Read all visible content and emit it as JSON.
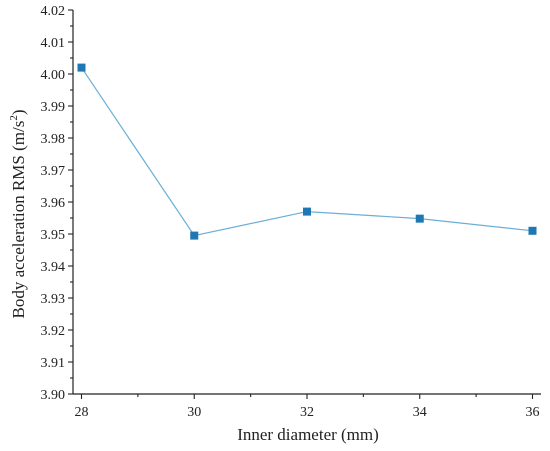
{
  "chart_data": {
    "type": "line",
    "title": "",
    "xlabel": "Inner diameter (mm)",
    "ylabel": "Body acceleration RMS (m/s",
    "ylabel_sup": "2",
    "ylabel_tail": ")",
    "x": [
      28,
      30,
      32,
      34,
      36
    ],
    "xticks": [
      "28",
      "30",
      "32",
      "34",
      "36"
    ],
    "xlim": [
      28,
      36
    ],
    "yticks": [
      "3.90",
      "3.91",
      "3.92",
      "3.93",
      "3.94",
      "3.95",
      "3.96",
      "3.97",
      "3.98",
      "3.99",
      "4.00",
      "4.01",
      "4.02"
    ],
    "ylim": [
      3.9,
      4.02
    ],
    "grid": false,
    "series": [
      {
        "values": [
          4.002,
          3.9495,
          3.957,
          3.9548,
          3.951
        ],
        "line_color": "#6baed6",
        "marker_color": "#1f77b4",
        "marker": "square"
      }
    ]
  }
}
